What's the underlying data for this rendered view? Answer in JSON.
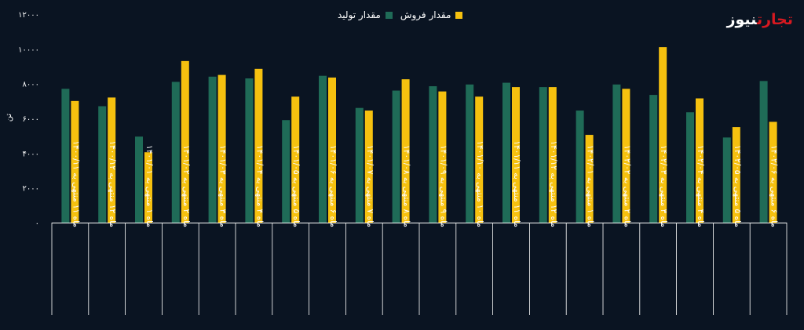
{
  "logo": {
    "part1": "تجارت",
    "part2": "نیوز"
  },
  "colors": {
    "production": "#1f6b57",
    "sales": "#f6c10f",
    "background": "#0a1422",
    "text": "#ffffff",
    "axis": "#ffffff"
  },
  "chart_data": {
    "type": "bar",
    "ylabel": "تن",
    "ylim": [
      0,
      12000
    ],
    "yticks": [
      "۰",
      "۲۰۰۰",
      "۴۰۰۰",
      "۶۰۰۰",
      "۸۰۰۰",
      "۱۰۰۰۰",
      "۱۲۰۰۰"
    ],
    "legend": "top",
    "categories": [
      "ماه ۱۱ منتهی به ۱۴۰۰/۱۱",
      "ماه ۱۲ منتهی به ۱۴۰۰/۱۲",
      "ماه ۱ منتهی به ۱۴۰۱/۰۱",
      "ماه ۲ منتهی به ۱۴۰۱/۰۲",
      "ماه ۳ منتهی به ۱۴۰۱/۰۳",
      "ماه ۴ منتهی به ۱۴۰۱/۰۴",
      "ماه ۵ منتهی به ۱۴۰۱/۰۵",
      "ماه ۶ منتهی به ۱۴۰۱/۰۶",
      "ماه ۷ منتهی به ۱۴۰۱/۰۷",
      "ماه ۸ منتهی به ۱۴۰۱/۰۸",
      "ماه ۹ منتهی به ۱۴۰۱/۰۹",
      "ماه ۱۰ منتهی به ۱۴۰۱/۱۰",
      "ماه ۱۱ منتهی به ۱۴۰۱/۱۱",
      "ماه ۱۲ منتهی به ۱۴۰۱/۱۲",
      "ماه ۱ منتهی به ۱۴۰۲/۰۱",
      "ماه ۲ منتهی به ۱۴۰۲/۰۲",
      "ماه ۳ منتهی به ۱۴۰۲/۰۳",
      "ماه ۴ منتهی به ۱۴۰۲/۰۴",
      "ماه ۵ منتهی به ۱۴۰۲/۰۵",
      "ماه ۶ منتهی به ۱۴۰۲/۰۶"
    ],
    "series": [
      {
        "name": "مقدار تولید",
        "color": "#1f6b57",
        "values": [
          7700,
          6700,
          4950,
          8100,
          8400,
          8300,
          5900,
          8450,
          6600,
          7600,
          7850,
          7950,
          8050,
          7800,
          6450,
          7950,
          7350,
          6350,
          4900,
          8150
        ]
      },
      {
        "name": "مقدار فروش",
        "color": "#f6c10f",
        "values": [
          7000,
          7200,
          4050,
          9300,
          8500,
          8850,
          7250,
          8350,
          6450,
          8250,
          7550,
          7250,
          7800,
          7800,
          5050,
          7700,
          10100,
          7150,
          5500,
          5800
        ]
      }
    ]
  }
}
